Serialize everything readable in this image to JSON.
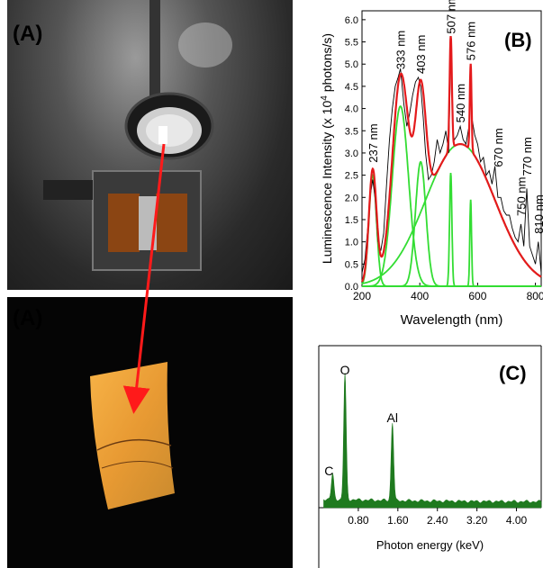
{
  "panels": {
    "a_top_label": "(A)",
    "a_bottom_label": "(A)",
    "b_label": "(B)",
    "c_label": "(C)"
  },
  "colors": {
    "fit_red": "#e41a1c",
    "component_green": "#33dd33",
    "data_black": "#000000",
    "eds_green": "#1f7a1f",
    "arrow_red": "#ff1a1a"
  },
  "chart_data": [
    {
      "type": "line",
      "xlabel": "Wavelength (nm)",
      "ylabel_main": "Luminescence Intensity (x 10",
      "ylabel_sup": "4",
      "ylabel_tail": " photons/s)",
      "xlim": [
        200,
        820
      ],
      "ylim": [
        0,
        6.2
      ],
      "xticks": [
        200,
        400,
        600,
        800
      ],
      "yticks": [
        0.0,
        0.5,
        1.0,
        1.5,
        2.0,
        2.5,
        3.0,
        3.5,
        4.0,
        4.5,
        5.0,
        5.5,
        6.0
      ],
      "peak_labels": [
        {
          "text": "237 nm",
          "x": 237,
          "y": 2.7
        },
        {
          "text": "333 nm",
          "x": 333,
          "y": 4.8
        },
        {
          "text": "403 nm",
          "x": 403,
          "y": 4.7
        },
        {
          "text": "507 nm",
          "x": 507,
          "y": 5.6
        },
        {
          "text": "540 nm",
          "x": 540,
          "y": 3.6
        },
        {
          "text": "576 nm",
          "x": 576,
          "y": 5.0
        },
        {
          "text": "670 nm",
          "x": 670,
          "y": 2.6
        },
        {
          "text": "750 nm",
          "x": 750,
          "y": 1.5
        },
        {
          "text": "770 nm",
          "x": 770,
          "y": 2.4
        },
        {
          "text": "810 nm",
          "x": 810,
          "y": 1.1
        }
      ],
      "components": [
        {
          "center": 237,
          "amp": 2.5,
          "width": 13
        },
        {
          "center": 333,
          "amp": 4.05,
          "width": 28
        },
        {
          "center": 403,
          "amp": 2.8,
          "width": 18
        },
        {
          "center": 507,
          "amp": 2.55,
          "width": 4
        },
        {
          "center": 540,
          "amp": 3.2,
          "width": 120
        },
        {
          "center": 576,
          "amp": 1.95,
          "width": 3
        }
      ],
      "series": [
        {
          "kind": "measured",
          "x": [
            200,
            210,
            220,
            230,
            237,
            245,
            255,
            265,
            275,
            285,
            295,
            305,
            315,
            325,
            333,
            345,
            355,
            365,
            375,
            385,
            395,
            403,
            412,
            420,
            430,
            440,
            450,
            460,
            470,
            480,
            490,
            500,
            505,
            507,
            510,
            515,
            520,
            530,
            540,
            550,
            560,
            570,
            576,
            580,
            590,
            600,
            610,
            620,
            630,
            640,
            650,
            660,
            670,
            680,
            690,
            700,
            710,
            720,
            730,
            740,
            750,
            760,
            770,
            780,
            790,
            800,
            810,
            820
          ],
          "y": [
            0.3,
            0.6,
            1.3,
            2.1,
            2.4,
            2.0,
            1.0,
            0.8,
            1.2,
            2.3,
            3.3,
            4.0,
            4.5,
            4.7,
            4.9,
            4.1,
            3.6,
            3.9,
            4.3,
            4.6,
            4.7,
            4.5,
            3.8,
            3.0,
            2.4,
            2.5,
            2.8,
            3.3,
            3.0,
            3.2,
            3.5,
            3.0,
            4.6,
            5.4,
            4.6,
            3.4,
            3.3,
            3.4,
            3.6,
            3.3,
            3.2,
            3.6,
            4.9,
            3.8,
            3.4,
            3.2,
            2.8,
            2.9,
            2.5,
            2.6,
            2.3,
            2.7,
            2.0,
            2.0,
            1.7,
            1.6,
            1.6,
            1.3,
            1.1,
            1.0,
            1.4,
            0.9,
            2.2,
            0.9,
            0.7,
            0.5,
            1.0,
            0.3
          ]
        }
      ]
    },
    {
      "type": "line",
      "xlabel": "Photon energy (keV)",
      "xlim": [
        0,
        4.5
      ],
      "xticks": [
        "0.80",
        "1.60",
        "2.40",
        "3.20",
        "4.00"
      ],
      "xtick_values": [
        0.8,
        1.6,
        2.4,
        3.2,
        4.0
      ],
      "peaks": [
        {
          "label": "C",
          "x": 0.28,
          "height": 0.2
        },
        {
          "label": "O",
          "x": 0.53,
          "height": 1.0
        },
        {
          "label": "Al",
          "x": 1.49,
          "height": 0.62
        }
      ]
    }
  ]
}
